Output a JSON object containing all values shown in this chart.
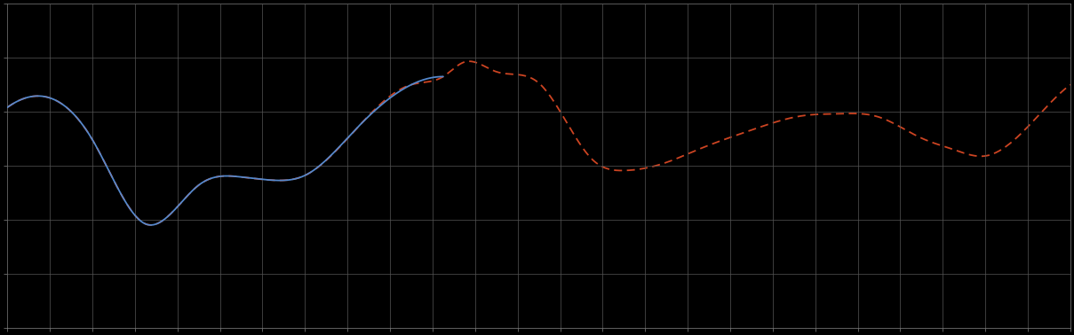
{
  "background_color": "#000000",
  "plot_bg_color": "#000000",
  "grid_color": "#555555",
  "line1_color": "#5588cc",
  "line2_color": "#cc4422",
  "line1_style": "solid",
  "line2_style": "dashed",
  "line_width": 1.3,
  "figsize": [
    12.09,
    3.78
  ],
  "dpi": 100,
  "xlim": [
    0,
    100
  ],
  "ylim": [
    0,
    10
  ],
  "spine_color": "#888888",
  "tick_color": "#888888",
  "n_xgrid": 25,
  "n_ygrid": 6
}
